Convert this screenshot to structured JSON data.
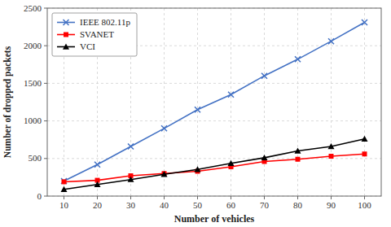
{
  "chart_data": {
    "type": "line",
    "xlabel": "Number of vehicles",
    "ylabel": "Number of dropped packets",
    "x": [
      10,
      20,
      30,
      40,
      50,
      60,
      70,
      80,
      90,
      100
    ],
    "series": [
      {
        "name": "IEEE 802.11p",
        "color": "#4472C4",
        "marker": "x",
        "values": [
          200,
          420,
          660,
          900,
          1150,
          1350,
          1600,
          1820,
          2060,
          2310
        ]
      },
      {
        "name": "SVANET",
        "color": "#FF0000",
        "marker": "square",
        "values": [
          190,
          210,
          270,
          300,
          330,
          390,
          460,
          490,
          530,
          560
        ]
      },
      {
        "name": "VCI",
        "color": "#000000",
        "marker": "triangle",
        "values": [
          90,
          155,
          220,
          290,
          355,
          435,
          510,
          600,
          660,
          760
        ]
      }
    ],
    "xlim": [
      5,
      105
    ],
    "ylim": [
      0,
      2500
    ],
    "xticks": [
      10,
      20,
      30,
      40,
      50,
      60,
      70,
      80,
      90,
      100
    ],
    "yticks": [
      0,
      500,
      1000,
      1500,
      2000,
      2500
    ],
    "grid": true,
    "legend": "upper left"
  }
}
